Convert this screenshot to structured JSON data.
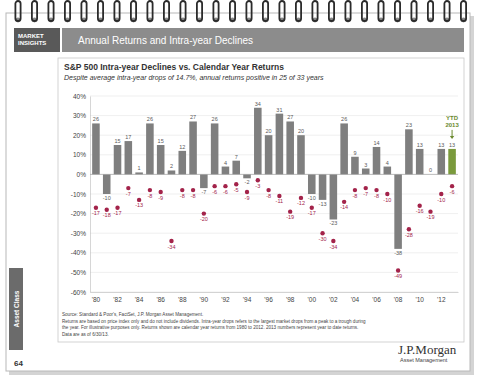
{
  "chart_data": {
    "type": "bar",
    "title": "S&P 500 Intra-year Declines vs. Calendar Year Returns",
    "subtitle": "Despite average intra-year drops of 14.7%, annual returns positive in 25 of 33 years",
    "categories": [
      "'80",
      null,
      "'82",
      null,
      "'84",
      null,
      "'86",
      null,
      "'88",
      null,
      "'90",
      null,
      "'92",
      null,
      "'94",
      null,
      "'96",
      null,
      "'98",
      null,
      "'00",
      null,
      "'02",
      null,
      "'04",
      null,
      "'06",
      null,
      "'08",
      null,
      "'10",
      null,
      "'12",
      null
    ],
    "series": [
      {
        "type": "bar",
        "colors": [
          "#7f7f7f",
          "#7f7f7f",
          "#7f7f7f",
          "#7f7f7f",
          "#7f7f7f",
          "#7f7f7f",
          "#7f7f7f",
          "#7f7f7f",
          "#7f7f7f",
          "#7f7f7f",
          "#7f7f7f",
          "#7f7f7f",
          "#7f7f7f",
          "#7f7f7f",
          "#7f7f7f",
          "#7f7f7f",
          "#7f7f7f",
          "#7f7f7f",
          "#7f7f7f",
          "#7f7f7f",
          "#7f7f7f",
          "#7f7f7f",
          "#7f7f7f",
          "#7f7f7f",
          "#7f7f7f",
          "#7f7f7f",
          "#7f7f7f",
          "#7f7f7f",
          "#7f7f7f",
          "#7f7f7f",
          "#7f7f7f",
          "#7f7f7f",
          "#7f7f7f",
          "#7a9a3c"
        ],
        "values": [
          26,
          -10,
          15,
          17,
          1,
          26,
          15,
          2,
          12,
          27,
          -7,
          26,
          4,
          7,
          -2,
          34,
          20,
          31,
          27,
          20,
          -10,
          -13,
          -23,
          26,
          9,
          3,
          14,
          4,
          -38,
          23,
          13,
          0,
          13,
          13
        ],
        "data_labels": true
      },
      {
        "type": "scatter",
        "marker": "circle",
        "color": "#a3234a",
        "values": [
          -17,
          -18,
          -17,
          -7,
          -13,
          -8,
          -9,
          -34,
          -8,
          -8,
          -20,
          -6,
          -6,
          -5,
          -9,
          -3,
          -8,
          -11,
          -19,
          -12,
          -17,
          -30,
          -34,
          -14,
          -8,
          -7,
          -8,
          -10,
          -49,
          -28,
          -16,
          -19,
          -10,
          -6
        ],
        "data_labels": true
      }
    ],
    "ylim": [
      -60,
      40
    ],
    "yticks": [
      {
        "value": 40,
        "label": "40%"
      },
      {
        "value": 30,
        "label": "30%"
      },
      {
        "value": 20,
        "label": "20%"
      },
      {
        "value": 10,
        "label": "10%"
      },
      {
        "value": 0,
        "label": "0%"
      },
      {
        "value": -10,
        "label": "-10%"
      },
      {
        "value": -20,
        "label": "-20%"
      },
      {
        "value": -30,
        "label": "-30%"
      },
      {
        "value": -40,
        "label": "-40%"
      },
      {
        "value": -50,
        "label": "-50%"
      },
      {
        "value": -60,
        "label": "-60%"
      }
    ],
    "grid": true,
    "annotations": [
      {
        "text": [
          "YTD",
          "2013"
        ],
        "category": 33,
        "color": "#6b8a2e"
      }
    ]
  },
  "page": {
    "section": [
      "MARKET",
      "INSIGHTS"
    ],
    "banner": "Annual Returns and Intra-year Declines",
    "tab": "Asset Class",
    "page_number": "64",
    "source": [
      "Source: Standard & Poor's, FactSet, J.P. Morgan Asset Management.",
      "Returns are based on price index only and do not include dividends. Intra-year drops refers to the largest market drops from a peak to a trough during",
      "the year. For illustrative purposes only. Returns shown are calendar year returns from 1980 to 2012. 2013 numbers represent year to date returns.",
      "Data are as of 6/30/13."
    ],
    "logo": [
      "J.P.Morgan",
      "Asset Management"
    ]
  }
}
